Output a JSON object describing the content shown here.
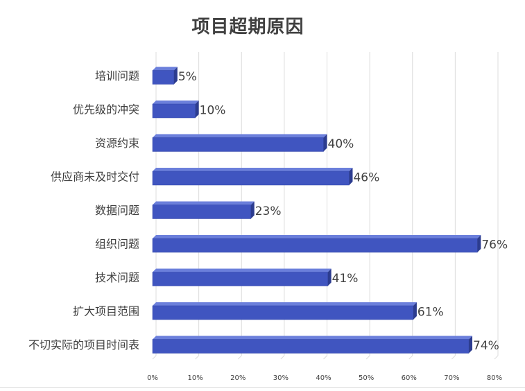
{
  "chart_data": {
    "type": "bar",
    "orientation": "horizontal",
    "title": "项目超期原因",
    "categories": [
      "培训问题",
      "优先级的冲突",
      "资源约束",
      "供应商未及时交付",
      "数据问题",
      "组织问题",
      "技术问题",
      "扩大项目范围",
      "不切实际的项目时间表"
    ],
    "values": [
      5,
      10,
      40,
      46,
      23,
      76,
      41,
      61,
      74
    ],
    "data_labels": [
      "5%",
      "10%",
      "40%",
      "46%",
      "23%",
      "76%",
      "41%",
      "61%",
      "74%"
    ],
    "xlim": [
      0,
      80
    ],
    "x_ticks": [
      "0%",
      "10%",
      "20%",
      "30%",
      "40%",
      "50%",
      "60%",
      "70%",
      "80%"
    ],
    "grid": true,
    "bar_color": "#4055c0",
    "bar_top_color": "#6b7fdb",
    "bar_side_color": "#2c3c8f",
    "grid_color": "#dcdcdc",
    "text_color": "#404040"
  }
}
